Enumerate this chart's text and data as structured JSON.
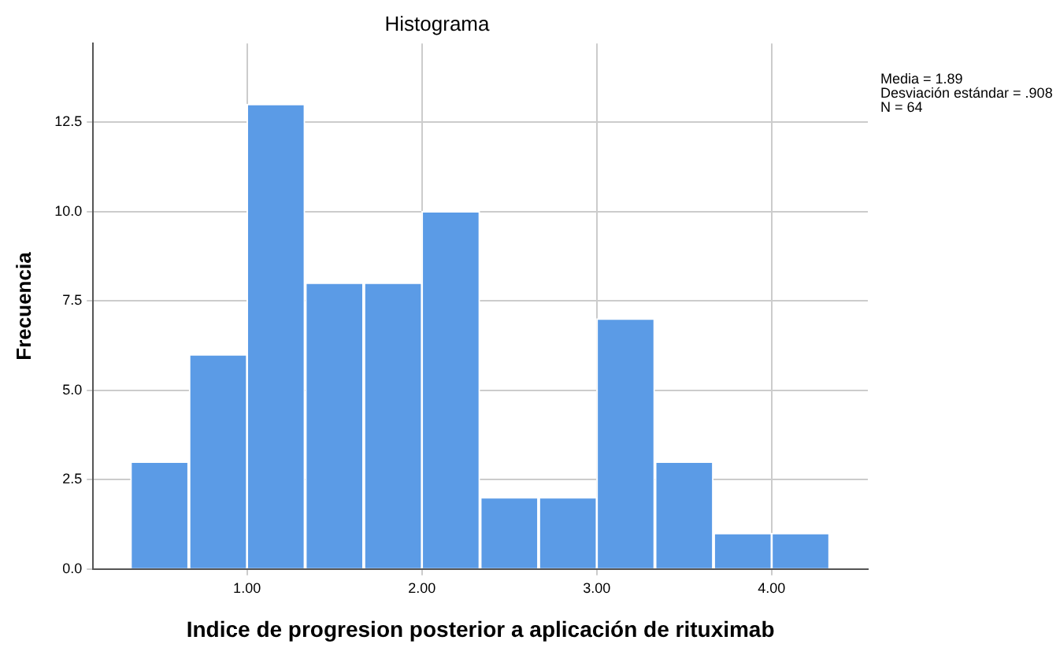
{
  "chart_data": {
    "type": "histogram",
    "title": "Histograma",
    "xlabel": "Indice de progresion posterior a aplicación de rituximab",
    "ylabel": "Frecuencia",
    "bins": [
      0.33,
      0.67,
      1.0,
      1.33,
      1.67,
      2.0,
      2.33,
      2.67,
      3.0,
      3.33,
      3.67,
      4.0,
      4.33
    ],
    "values": [
      3,
      6,
      13,
      8,
      8,
      10,
      2,
      2,
      7,
      3,
      1,
      1
    ],
    "color": "#5b9be6",
    "xlim": [
      0.12,
      4.55
    ],
    "xticks": [
      {
        "value": 1,
        "label": "1.00"
      },
      {
        "value": 2,
        "label": "2.00"
      },
      {
        "value": 3,
        "label": "3.00"
      },
      {
        "value": 4,
        "label": "4.00"
      }
    ],
    "ylim": [
      0,
      14.7
    ],
    "yticks": [
      {
        "value": 0,
        "label": "0.0"
      },
      {
        "value": 2.5,
        "label": "2.5"
      },
      {
        "value": 5,
        "label": "5.0"
      },
      {
        "value": 7.5,
        "label": "7.5"
      },
      {
        "value": 10,
        "label": "10.0"
      },
      {
        "value": 12.5,
        "label": "12.5"
      }
    ],
    "grid": true,
    "annotations": [
      "Media = 1.89",
      "Desviación estándar = .908",
      "N = 64"
    ]
  }
}
